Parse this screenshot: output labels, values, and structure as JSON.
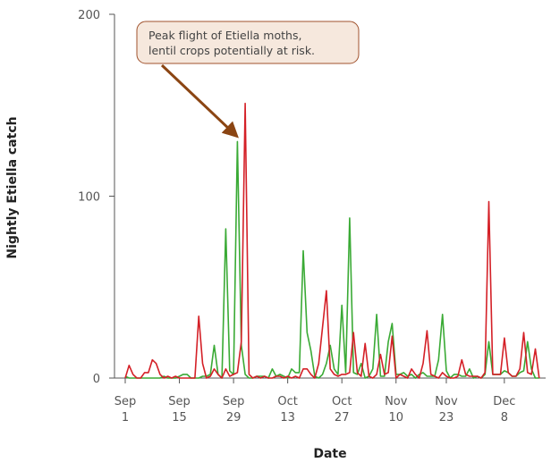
{
  "chart_data": {
    "type": "line",
    "title": "",
    "xlabel": "Date",
    "ylabel": "Nightly Etiella catch",
    "ylim": [
      0,
      200
    ],
    "y_ticks": [
      0,
      100,
      200
    ],
    "x_start": "Sep 1",
    "x_end": "Dec 17",
    "x_ticks": [
      {
        "month": "Sep",
        "day": "1",
        "day_index": 0
      },
      {
        "month": "Sep",
        "day": "15",
        "day_index": 14
      },
      {
        "month": "Sep",
        "day": "29",
        "day_index": 28
      },
      {
        "month": "Oct",
        "day": "13",
        "day_index": 42
      },
      {
        "month": "Oct",
        "day": "27",
        "day_index": 56
      },
      {
        "month": "Nov",
        "day": "10",
        "day_index": 70
      },
      {
        "month": "Nov",
        "day": "23",
        "day_index": 83
      },
      {
        "month": "Dec",
        "day": "8",
        "day_index": 98
      }
    ],
    "grid": false,
    "annotation": {
      "lines": [
        "Peak flight of Etiella moths,",
        "lentil crops potentially at risk."
      ],
      "points_to_day_index": 29,
      "points_to_value": 135
    },
    "series": [
      {
        "color": "#3aaa35",
        "values": [
          1,
          0,
          0,
          0,
          0,
          0,
          0,
          0,
          0,
          0,
          1,
          0,
          0,
          0,
          1,
          2,
          2,
          0,
          0,
          0,
          1,
          1,
          2,
          18,
          2,
          0,
          82,
          4,
          2,
          130,
          18,
          2,
          0,
          0,
          1,
          1,
          1,
          0,
          5,
          1,
          2,
          1,
          0,
          5,
          3,
          3,
          70,
          25,
          15,
          1,
          0,
          2,
          8,
          18,
          5,
          2,
          40,
          3,
          88,
          3,
          2,
          8,
          0,
          1,
          5,
          35,
          1,
          1,
          20,
          30,
          2,
          2,
          3,
          1,
          2,
          0,
          2,
          3,
          1,
          1,
          1,
          10,
          35,
          4,
          0,
          2,
          2,
          1,
          1,
          5,
          0,
          1,
          0,
          2,
          20,
          2,
          2,
          2,
          4,
          3,
          1,
          1,
          3,
          4,
          20,
          5,
          0,
          0
        ]
      },
      {
        "color": "#d42027",
        "values": [
          0,
          7,
          2,
          0,
          0,
          3,
          3,
          10,
          8,
          2,
          0,
          1,
          0,
          1,
          0,
          0,
          0,
          0,
          0,
          34,
          8,
          0,
          1,
          5,
          2,
          0,
          5,
          1,
          2,
          3,
          20,
          151,
          2,
          0,
          1,
          0,
          1,
          0,
          0,
          1,
          1,
          0,
          1,
          0,
          1,
          0,
          5,
          5,
          2,
          0,
          8,
          28,
          48,
          5,
          2,
          1,
          2,
          2,
          3,
          25,
          3,
          1,
          19,
          1,
          0,
          2,
          13,
          2,
          3,
          23,
          0,
          2,
          1,
          0,
          5,
          2,
          0,
          8,
          26,
          2,
          1,
          0,
          3,
          1,
          0,
          0,
          1,
          10,
          2,
          1,
          1,
          1,
          0,
          3,
          97,
          2,
          2,
          2,
          22,
          3,
          1,
          1,
          5,
          25,
          3,
          2,
          16,
          0
        ]
      }
    ]
  }
}
